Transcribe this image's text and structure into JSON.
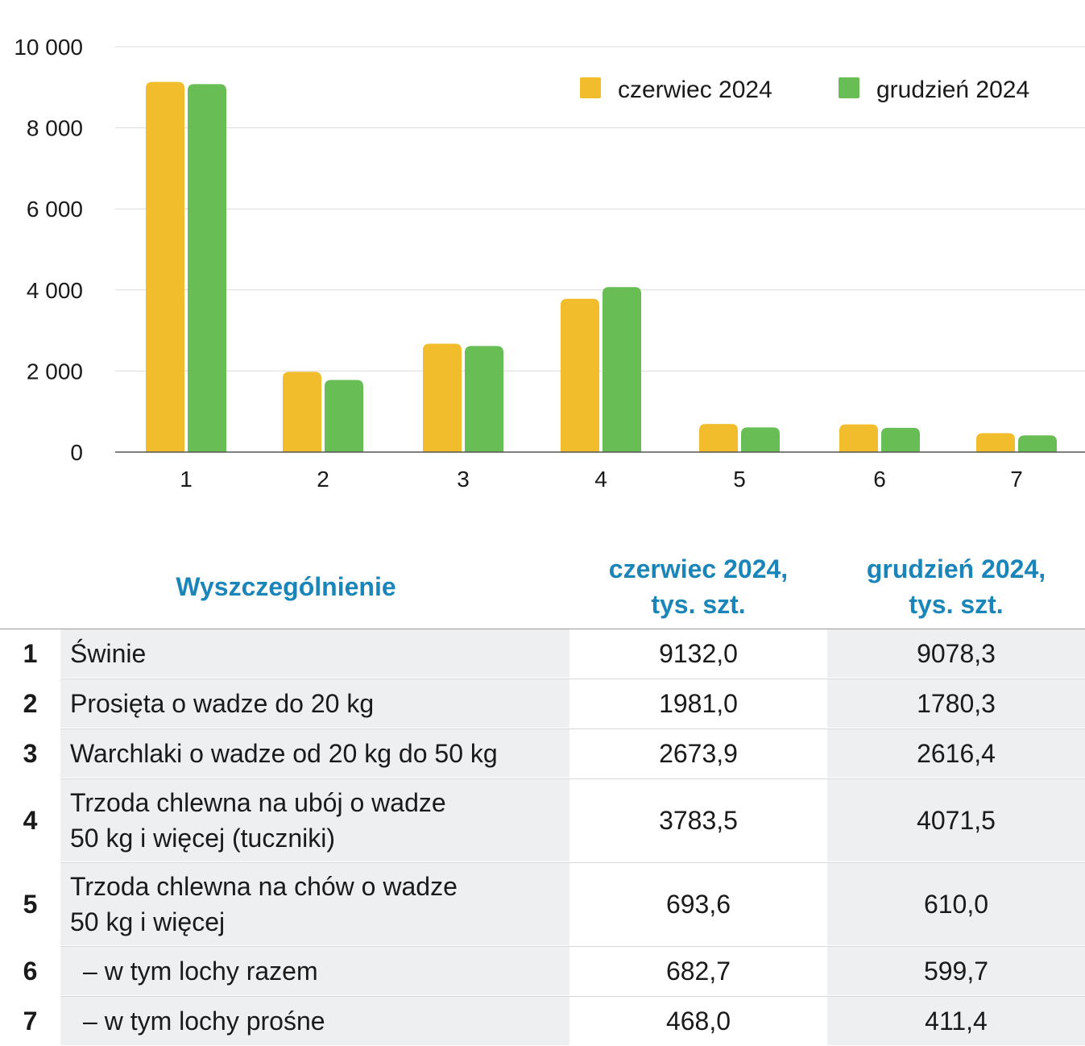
{
  "chart_data": {
    "type": "bar",
    "categories": [
      "1",
      "2",
      "3",
      "4",
      "5",
      "6",
      "7"
    ],
    "series": [
      {
        "name": "czerwiec 2024",
        "color": "#f2bd2c",
        "values": [
          9132.0,
          1981.0,
          2673.9,
          3783.5,
          693.6,
          682.7,
          468.0
        ]
      },
      {
        "name": "grudzień 2024",
        "color": "#68bd55",
        "values": [
          9078.3,
          1780.3,
          2616.4,
          4071.5,
          610.0,
          599.7,
          411.4
        ]
      }
    ],
    "yticks": [
      "0",
      "2 000",
      "4 000",
      "6 000",
      "8 000",
      "10 000"
    ],
    "ylim": [
      0,
      10000
    ],
    "legend_position": "top-right",
    "grid": true
  },
  "table": {
    "header": {
      "name": "Wyszczególnienie",
      "col1_line1": "czerwiec 2024,",
      "col1_line2": "tys. szt.",
      "col2_line1": "grudzień 2024,",
      "col2_line2": "tys. szt."
    },
    "rows": [
      {
        "num": "1",
        "lines": [
          "Świnie"
        ],
        "v1": "9132,0",
        "v2": "9078,3"
      },
      {
        "num": "2",
        "lines": [
          "Prosięta o wadze do 20 kg"
        ],
        "v1": "1981,0",
        "v2": "1780,3"
      },
      {
        "num": "3",
        "lines": [
          "Warchlaki o wadze od 20 kg do 50 kg"
        ],
        "v1": "2673,9",
        "v2": "2616,4"
      },
      {
        "num": "4",
        "lines": [
          "Trzoda chlewna na ubój o wadze",
          "50 kg i więcej (tuczniki)"
        ],
        "v1": "3783,5",
        "v2": "4071,5"
      },
      {
        "num": "5",
        "lines": [
          "Trzoda chlewna na chów o wadze",
          "50 kg i więcej"
        ],
        "v1": "693,6",
        "v2": "610,0"
      },
      {
        "num": "6",
        "lines": [
          " – w tym lochy razem"
        ],
        "v1": "682,7",
        "v2": "599,7"
      },
      {
        "num": "7",
        "lines": [
          " – w tym lochy prośne"
        ],
        "v1": "468,0",
        "v2": "411,4"
      }
    ]
  }
}
